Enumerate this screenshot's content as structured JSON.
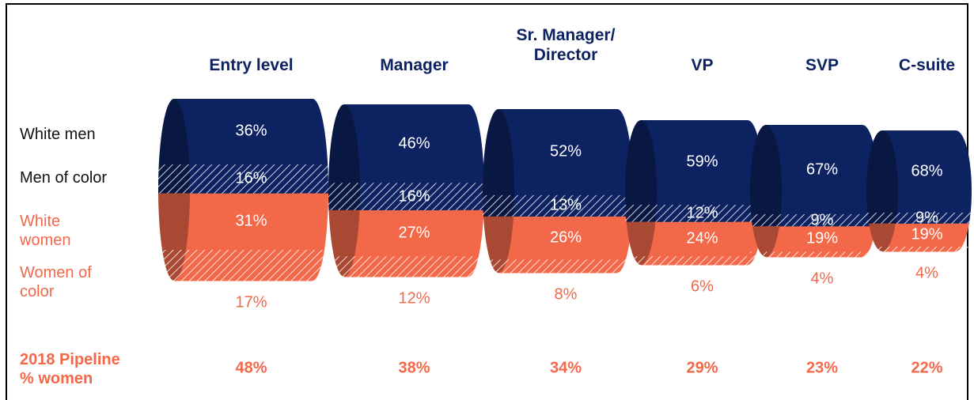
{
  "chart_data": {
    "type": "pipeline",
    "categories": [
      "Entry level",
      "Manager",
      "Sr. Manager/ Director",
      "VP",
      "SVP",
      "C-suite"
    ],
    "series": [
      {
        "name": "White men",
        "color": "#0d2260",
        "values": [
          36,
          46,
          52,
          59,
          67,
          68
        ],
        "value_labels": [
          "36%",
          "46%",
          "52%",
          "59%",
          "67%",
          "68%"
        ]
      },
      {
        "name": "Men of color",
        "color": "#0d2260",
        "hatched": true,
        "values": [
          16,
          16,
          13,
          12,
          9,
          9
        ],
        "value_labels": [
          "16%",
          "16%",
          "13%",
          "12%",
          "9%",
          "9%"
        ]
      },
      {
        "name": "White women",
        "color": "#f26849",
        "values": [
          31,
          27,
          26,
          24,
          19,
          19
        ],
        "value_labels": [
          "31%",
          "27%",
          "26%",
          "24%",
          "19%",
          "19%"
        ]
      },
      {
        "name": "Women of color",
        "color": "#f26849",
        "hatched": true,
        "values": [
          17,
          12,
          8,
          6,
          4,
          4
        ],
        "value_labels": [
          "17%",
          "12%",
          "8%",
          "6%",
          "4%",
          "4%"
        ]
      }
    ],
    "pipeline": {
      "label": "2018 Pipeline % women",
      "values": [
        48,
        38,
        34,
        29,
        23,
        22
      ],
      "value_labels": [
        "48%",
        "38%",
        "34%",
        "29%",
        "23%",
        "22%"
      ]
    }
  }
}
